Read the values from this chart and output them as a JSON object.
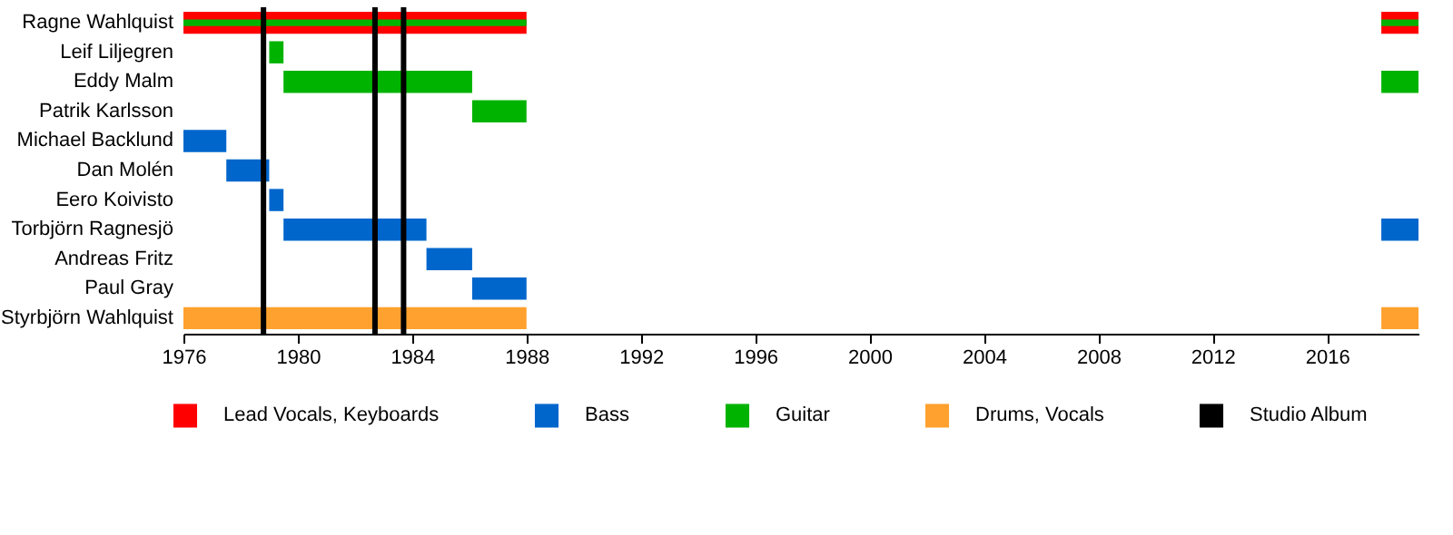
{
  "chart_data": {
    "type": "bar",
    "orientation": "horizontal",
    "categories": [
      "Ragne Wahlquist",
      "Leif Liljegren",
      "Eddy Malm",
      "Patrik Karlsson",
      "Michael Backlund",
      "Dan Molén",
      "Eero Koivisto",
      "Torbjörn Ragnesjö",
      "Andreas Fritz",
      "Paul Gray",
      "Styrbjörn Wahlquist"
    ],
    "series": [
      {
        "name": "Lead Vocals, Keyboards",
        "color": "#ff0000",
        "base": [
          1976,
          null,
          null,
          null,
          null,
          null,
          null,
          null,
          null,
          null,
          null
        ],
        "values": [
          12,
          null,
          null,
          null,
          null,
          null,
          null,
          null,
          null,
          null,
          null
        ]
      },
      {
        "color": "#ff0000",
        "base": [
          2017.9,
          null,
          null,
          null,
          null,
          null,
          null,
          null,
          null,
          null,
          null
        ],
        "values": [
          1.3,
          null,
          null,
          null,
          null,
          null,
          null,
          null,
          null,
          null,
          null
        ]
      },
      {
        "name": "Bass",
        "color": "#0066cc",
        "base": [
          null,
          null,
          null,
          null,
          1976,
          1977.5,
          1979,
          1979.5,
          1984.5,
          1986.1,
          null
        ],
        "values": [
          null,
          null,
          null,
          null,
          1.5,
          1.5,
          0.5,
          5,
          1.6,
          1.9,
          null
        ]
      },
      {
        "color": "#0066cc",
        "base": [
          null,
          null,
          null,
          null,
          null,
          null,
          null,
          2017.9,
          null,
          null,
          null
        ],
        "values": [
          null,
          null,
          null,
          null,
          null,
          null,
          null,
          1.3,
          null,
          null,
          null
        ]
      },
      {
        "name": "Guitar",
        "color": "#00b300",
        "base": [
          1976,
          1979,
          1979.5,
          1986.1,
          null,
          null,
          null,
          null,
          null,
          null,
          null
        ],
        "values": [
          12,
          0.5,
          6.6,
          1.9,
          null,
          null,
          null,
          null,
          null,
          null,
          null
        ]
      },
      {
        "color": "#00b300",
        "base": [
          2017.9,
          null,
          2017.9,
          null,
          null,
          null,
          null,
          null,
          null,
          null,
          null
        ],
        "values": [
          1.3,
          null,
          1.3,
          null,
          null,
          null,
          null,
          null,
          null,
          null,
          null
        ]
      },
      {
        "name": "Drums, Vocals",
        "color": "#ffa12f",
        "base": [
          null,
          null,
          null,
          null,
          null,
          null,
          null,
          null,
          null,
          null,
          1976
        ],
        "values": [
          null,
          null,
          null,
          null,
          null,
          null,
          null,
          null,
          null,
          null,
          12
        ]
      },
      {
        "color": "#ffa12f",
        "base": [
          null,
          null,
          null,
          null,
          null,
          null,
          null,
          null,
          null,
          null,
          2017.9
        ],
        "values": [
          null,
          null,
          null,
          null,
          null,
          null,
          null,
          null,
          null,
          null,
          1.3
        ]
      }
    ],
    "ref_lines": [
      {
        "axis": "x",
        "value": 1978.8,
        "label": "Studio Album",
        "color": "#000000"
      },
      {
        "axis": "x",
        "value": 1982.7,
        "color": "#000000"
      },
      {
        "axis": "x",
        "value": 1983.7,
        "color": "#000000"
      }
    ],
    "xlim": [
      1976,
      2019.2
    ],
    "xticks": [
      1976,
      1980,
      1984,
      1988,
      1992,
      1996,
      2000,
      2004,
      2008,
      2012,
      2016
    ],
    "legend": "bottom"
  }
}
